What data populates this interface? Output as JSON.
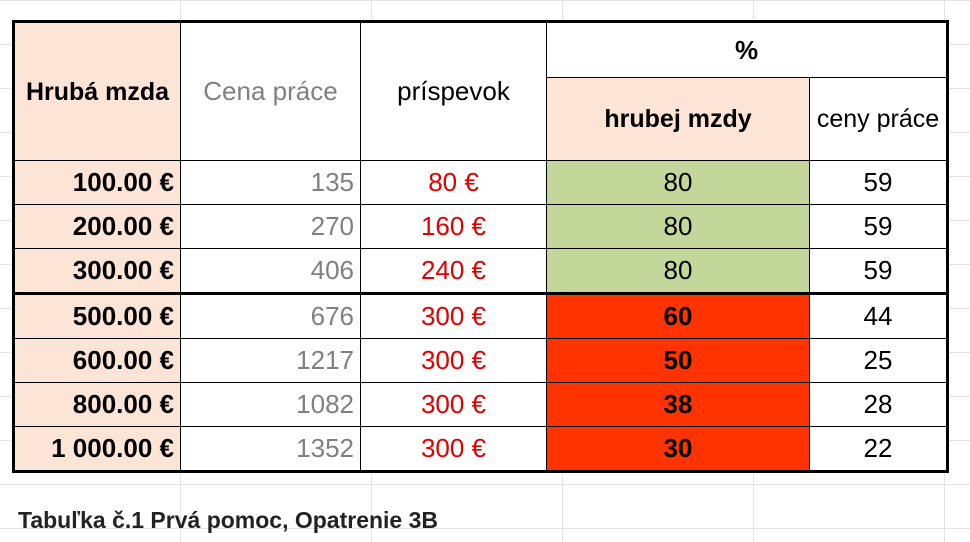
{
  "header": {
    "hruba_mzda": "Hrubá mzda",
    "cena_prace": "Cena práce",
    "prispevok": "príspevok",
    "percent": "%",
    "hrubej_mzdy": "hrubej mzdy",
    "ceny_prace": "ceny práce"
  },
  "rows": [
    {
      "hruba": "100.00 €",
      "cena": "135",
      "prispevok": "80 €",
      "pct_hrubej": "80",
      "pct_ceny": "59",
      "status": "green"
    },
    {
      "hruba": "200.00 €",
      "cena": "270",
      "prispevok": "160 €",
      "pct_hrubej": "80",
      "pct_ceny": "59",
      "status": "green"
    },
    {
      "hruba": "300.00 €",
      "cena": "406",
      "prispevok": "240 €",
      "pct_hrubej": "80",
      "pct_ceny": "59",
      "status": "green"
    },
    {
      "hruba": "500.00 €",
      "cena": "676",
      "prispevok": "300 €",
      "pct_hrubej": "60",
      "pct_ceny": "44",
      "status": "red"
    },
    {
      "hruba": "600.00 €",
      "cena": "1217",
      "prispevok": "300 €",
      "pct_hrubej": "50",
      "pct_ceny": "25",
      "status": "red"
    },
    {
      "hruba": "800.00 €",
      "cena": "1082",
      "prispevok": "300 €",
      "pct_hrubej": "38",
      "pct_ceny": "28",
      "status": "red"
    },
    {
      "hruba": "1 000.00 €",
      "cena": "1352",
      "prispevok": "300 €",
      "pct_hrubej": "30",
      "pct_ceny": "22",
      "status": "red"
    }
  ],
  "caption": "Tabuľka č.1 Prvá pomoc, Opatrenie 3B",
  "colors": {
    "header_peach": "#fce4d6",
    "green": "#c4d79b",
    "red": "#ff3300",
    "red_text": "#e00000",
    "gray_text": "#808080"
  }
}
